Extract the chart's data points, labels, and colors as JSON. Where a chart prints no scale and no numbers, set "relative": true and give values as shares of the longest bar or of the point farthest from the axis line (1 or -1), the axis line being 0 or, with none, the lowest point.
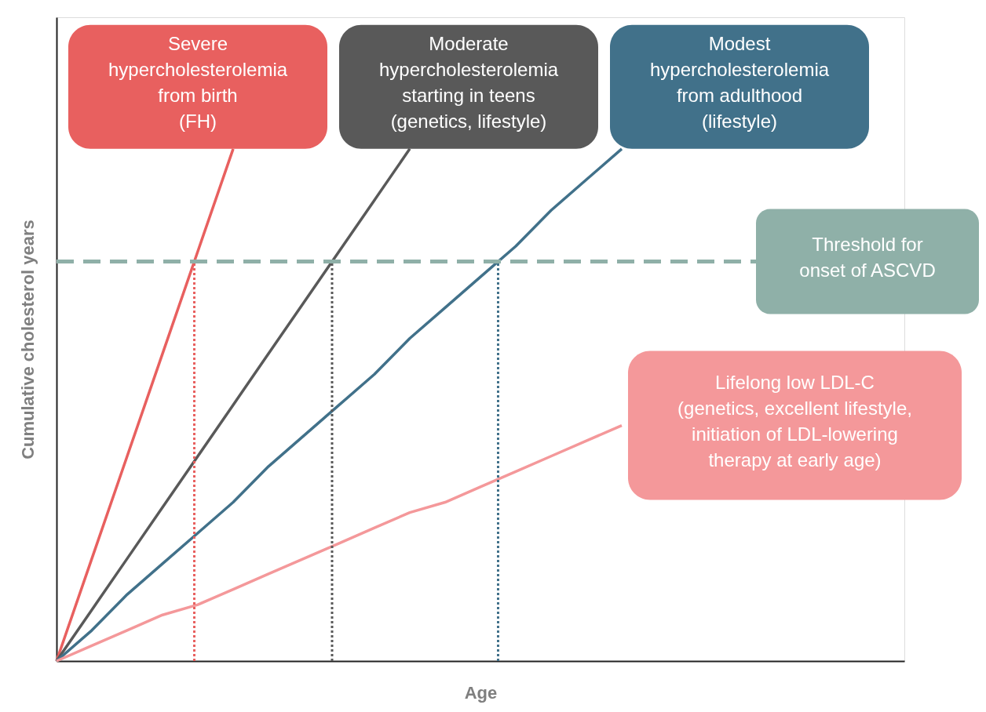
{
  "chart_data": {
    "type": "line",
    "relative": true,
    "xlabel": "Age",
    "ylabel": "Cumulative cholesterol years",
    "legend": false,
    "marker": "none",
    "line_style": "solid",
    "categories": [
      null,
      null,
      null,
      null,
      null,
      null,
      null,
      null,
      null,
      null,
      null,
      null,
      null,
      null,
      null,
      null,
      null,
      null,
      null,
      null,
      null,
      null,
      null,
      null,
      null
    ],
    "series": [
      {
        "name": "Severe\nhypercholesterolemia\nfrom birth\n(FH)",
        "color": "#e8605f",
        "values": [
          0,
          0.2,
          0.4,
          0.6,
          0.8,
          1,
          null,
          null,
          null,
          null,
          null,
          null,
          null,
          null,
          null,
          null,
          null,
          null,
          null,
          null,
          null,
          null,
          null,
          null,
          null
        ]
      },
      {
        "name": "Moderate\nhypercholesterolemia\nstarting in teens\n(genetics, lifestyle)",
        "color": "#595959",
        "values": [
          0,
          0.1,
          0.2,
          0.3,
          0.4,
          0.5,
          0.6,
          0.7,
          0.8,
          0.9,
          1,
          null,
          null,
          null,
          null,
          null,
          null,
          null,
          null,
          null,
          null,
          null,
          null,
          null,
          null
        ]
      },
      {
        "name": "Modest\nhypercholesterolemia\nfrom adulthood\n(lifestyle)",
        "color": "#41718a",
        "values": [
          0,
          0.06,
          0.13,
          0.19,
          0.25,
          0.31,
          0.38,
          0.44,
          0.5,
          0.56,
          0.63,
          0.69,
          0.75,
          0.81,
          0.88,
          0.94,
          1,
          null,
          null,
          null,
          null,
          null,
          null,
          null,
          null
        ]
      },
      {
        "name": "Lifelong low LDL-C\n(genetics, excellent lifestyle,\ninitiation of LDL-lowering\ntherapy at early age)",
        "color": "#f4989a",
        "values": [
          0,
          0.03,
          0.06,
          0.09,
          0.11,
          0.14,
          0.17,
          0.2,
          0.23,
          0.26,
          0.29,
          0.31,
          0.34,
          0.37,
          0.4,
          0.43,
          0.46,
          null,
          null,
          null,
          null,
          null,
          null,
          null,
          null
        ]
      }
    ],
    "ref_lines": [
      {
        "axis": "y",
        "value": 0.78,
        "label": "Threshold for\nonset of ASCVD",
        "color": "#8fb0a8",
        "line_style": "dashed"
      }
    ]
  }
}
